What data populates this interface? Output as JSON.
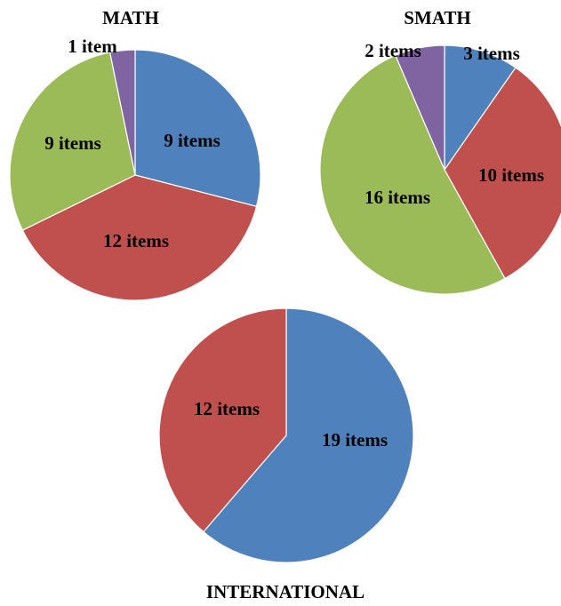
{
  "chart_data": [
    {
      "type": "pie",
      "title": "MATH",
      "slices": [
        {
          "label": "9 items",
          "value": 9,
          "color": "#4F81BD"
        },
        {
          "label": "12 items",
          "value": 12,
          "color": "#C0504D"
        },
        {
          "label": "9 items",
          "value": 9,
          "color": "#9BBB59"
        },
        {
          "label": "1 item",
          "value": 1,
          "color": "#8064A2"
        }
      ]
    },
    {
      "type": "pie",
      "title": "SMATH",
      "slices": [
        {
          "label": "3 items",
          "value": 3,
          "color": "#4F81BD"
        },
        {
          "label": "10 items",
          "value": 10,
          "color": "#C0504D"
        },
        {
          "label": "16 items",
          "value": 16,
          "color": "#9BBB59"
        },
        {
          "label": "2 items",
          "value": 2,
          "color": "#8064A2"
        }
      ]
    },
    {
      "type": "pie",
      "title": "INTERNATIONAL",
      "slices": [
        {
          "label": "19 items",
          "value": 19,
          "color": "#4F81BD"
        },
        {
          "label": "12 items",
          "value": 12,
          "color": "#C0504D"
        }
      ]
    }
  ]
}
